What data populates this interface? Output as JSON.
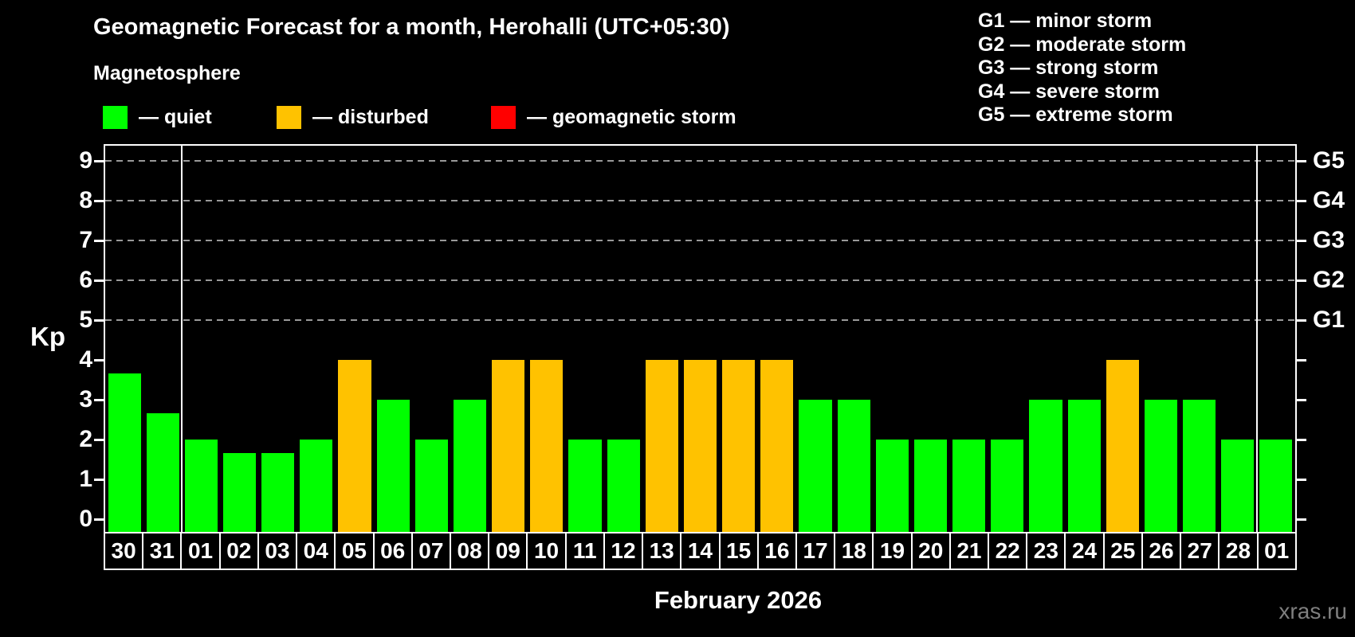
{
  "title": "Geomagnetic Forecast for a month, Herohalli (UTC+05:30)",
  "subtitle": "Magnetosphere",
  "legend": {
    "quiet_label": "— quiet",
    "disturbed_label": "— disturbed",
    "storm_label": "— geomagnetic storm"
  },
  "g_legend": [
    "G1 — minor storm",
    "G2 — moderate storm",
    "G3 — strong storm",
    "G4 — severe storm",
    "G5 — extreme storm"
  ],
  "axes": {
    "y_label": "Kp",
    "y_ticks": [
      "0",
      "1",
      "2",
      "3",
      "4",
      "5",
      "6",
      "7",
      "8",
      "9"
    ],
    "right_scale": [
      {
        "kp": 5,
        "label": "G1"
      },
      {
        "kp": 6,
        "label": "G2"
      },
      {
        "kp": 7,
        "label": "G3"
      },
      {
        "kp": 8,
        "label": "G4"
      },
      {
        "kp": 9,
        "label": "G5"
      }
    ]
  },
  "x_axis": {
    "month_label": "February 2026"
  },
  "watermark": "xras.ru",
  "colors": {
    "quiet": "#00ff00",
    "disturbed": "#ffc200",
    "storm": "#ff0000",
    "background": "#000000",
    "grid": "#999999"
  },
  "chart_data": {
    "type": "bar",
    "title": "Geomagnetic Forecast for a month, Herohalli (UTC+05:30)",
    "xlabel": "February 2026",
    "ylabel": "Kp",
    "ylim": [
      0,
      9.4
    ],
    "grid": "dashed horizontal at Kp 5-9 only",
    "legend_position": "top",
    "categories": [
      "30",
      "31",
      "01",
      "02",
      "03",
      "04",
      "05",
      "06",
      "07",
      "08",
      "09",
      "10",
      "11",
      "12",
      "13",
      "14",
      "15",
      "16",
      "17",
      "18",
      "19",
      "20",
      "21",
      "22",
      "23",
      "24",
      "25",
      "26",
      "27",
      "28",
      "01"
    ],
    "values": [
      3.67,
      2.67,
      2,
      1.67,
      1.67,
      2,
      4,
      3,
      2,
      3,
      4,
      4,
      2,
      2,
      4,
      4,
      4,
      4,
      3,
      3,
      2,
      2,
      2,
      2,
      3,
      3,
      4,
      3,
      3,
      2,
      2
    ],
    "statuses": [
      "quiet",
      "quiet",
      "quiet",
      "quiet",
      "quiet",
      "quiet",
      "disturbed",
      "quiet",
      "quiet",
      "quiet",
      "disturbed",
      "disturbed",
      "quiet",
      "quiet",
      "disturbed",
      "disturbed",
      "disturbed",
      "disturbed",
      "quiet",
      "quiet",
      "quiet",
      "quiet",
      "quiet",
      "quiet",
      "quiet",
      "quiet",
      "disturbed",
      "quiet",
      "quiet",
      "quiet",
      "quiet"
    ],
    "grid_levels": [
      5,
      6,
      7,
      8,
      9
    ],
    "month_boundaries": [
      2,
      30
    ]
  }
}
